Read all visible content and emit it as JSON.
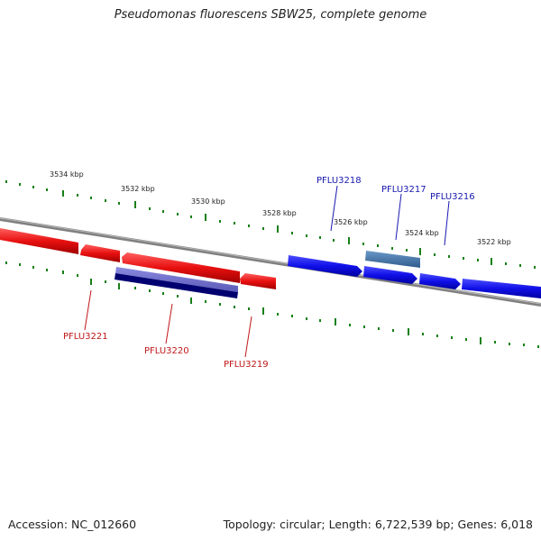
{
  "title": "Pseudomonas fluorescens SBW25, complete genome",
  "footer": {
    "accession": "Accession: NC_012660",
    "summary": "Topology: circular; Length: 6,722,539 bp; Genes: 6,018"
  },
  "scale_labels": [
    "3534 kbp",
    "3532 kbp",
    "3530 kbp",
    "3528 kbp",
    "3526 kbp",
    "3524 kbp",
    "3522 kbp"
  ],
  "gene_labels_top": [
    "PFLU3218",
    "PFLU3217",
    "PFLU3216"
  ],
  "gene_labels_bottom": [
    "PFLU3221",
    "PFLU3220",
    "PFLU3219"
  ],
  "colors": {
    "forward_gene": "#1010e8",
    "reverse_gene": "#e81010",
    "highlight_forward": "#4a7ab0",
    "highlight_reverse": "#5050b0",
    "backbone": "#808080",
    "ticks": "#188018"
  }
}
